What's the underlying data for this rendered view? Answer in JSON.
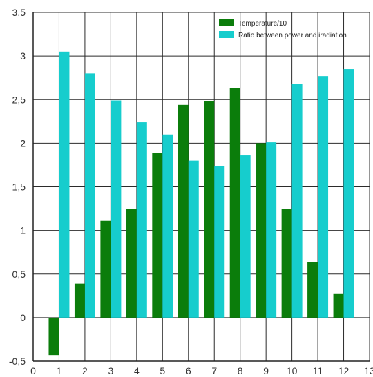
{
  "chart_data": {
    "type": "bar",
    "title": "",
    "xlabel": "",
    "ylabel": "",
    "x": [
      1,
      2,
      3,
      4,
      5,
      6,
      7,
      8,
      9,
      10,
      11,
      12
    ],
    "series": [
      {
        "name": "Temperature/10",
        "color": "#0b7d0b",
        "values": [
          -0.43,
          0.39,
          1.11,
          1.25,
          1.89,
          2.44,
          2.48,
          2.63,
          2.0,
          1.25,
          0.64,
          0.27
        ]
      },
      {
        "name": "Ratio between power and iradiation",
        "color": "#16cdcd",
        "values": [
          3.05,
          2.8,
          2.49,
          2.24,
          2.1,
          1.8,
          1.74,
          1.86,
          2.01,
          2.68,
          2.77,
          2.85
        ]
      }
    ],
    "xlim": [
      0,
      13
    ],
    "ylim": [
      -0.5,
      3.5
    ],
    "xticks": [
      "0",
      "1",
      "2",
      "3",
      "4",
      "5",
      "6",
      "7",
      "8",
      "9",
      "10",
      "11",
      "12",
      "13"
    ],
    "yticks": [
      "-0,5",
      "0",
      "0,5",
      "1",
      "1,5",
      "2",
      "2,5",
      "3",
      "3,5"
    ],
    "grid": true,
    "legend_position": "top-right"
  }
}
